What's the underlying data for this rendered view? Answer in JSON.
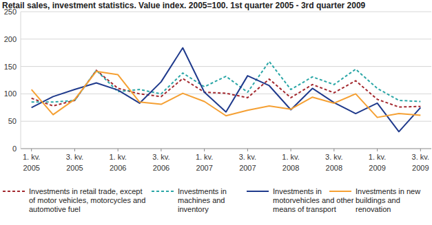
{
  "chart_data": {
    "type": "line",
    "title": "Retail sales, investment statistics. Value index. 2005=100. 1st quarter 2005 - 3rd quarter 2009",
    "categories": [
      "1. kv. 2005",
      null,
      "3. kv. 2005",
      null,
      "1. kv. 2006",
      null,
      "3. kv. 2006",
      null,
      "1. kv. 2007",
      null,
      "3. kv. 2007",
      null,
      "1. kv. 2008",
      null,
      "3. kv. 2008",
      null,
      "1. kv. 2009",
      null,
      "3. kv. 2009"
    ],
    "series": [
      {
        "name": "Investments in retail trade, except of motor vehicles, motorcycles and automotive fuel",
        "color": "#a3282e",
        "line_style": "dashed",
        "values": [
          92,
          78,
          88,
          143,
          110,
          100,
          95,
          128,
          103,
          101,
          93,
          127,
          93,
          117,
          102,
          124,
          90,
          76,
          77
        ]
      },
      {
        "name": "Investments in machines and inventory",
        "color": "#2aa6a6",
        "line_style": "dashed",
        "values": [
          85,
          85,
          88,
          143,
          104,
          108,
          100,
          138,
          113,
          132,
          103,
          159,
          108,
          131,
          117,
          145,
          110,
          88,
          86
        ]
      },
      {
        "name": "Investments in motorvehicles and other means of transport",
        "color": "#1f3a8c",
        "line_style": "solid",
        "values": [
          75,
          95,
          108,
          120,
          107,
          83,
          122,
          184,
          103,
          67,
          133,
          115,
          71,
          110,
          84,
          64,
          83,
          31,
          75
        ]
      },
      {
        "name": "Investments in new buildings and renovation",
        "color": "#f5a033",
        "line_style": "solid",
        "values": [
          108,
          62,
          90,
          141,
          135,
          85,
          81,
          101,
          86,
          60,
          70,
          78,
          72,
          94,
          83,
          100,
          57,
          64,
          61
        ]
      }
    ],
    "ylim": [
      0,
      250
    ],
    "yticks": [
      0,
      50,
      100,
      150,
      200,
      250
    ],
    "grid": true,
    "legend": "bottom"
  }
}
